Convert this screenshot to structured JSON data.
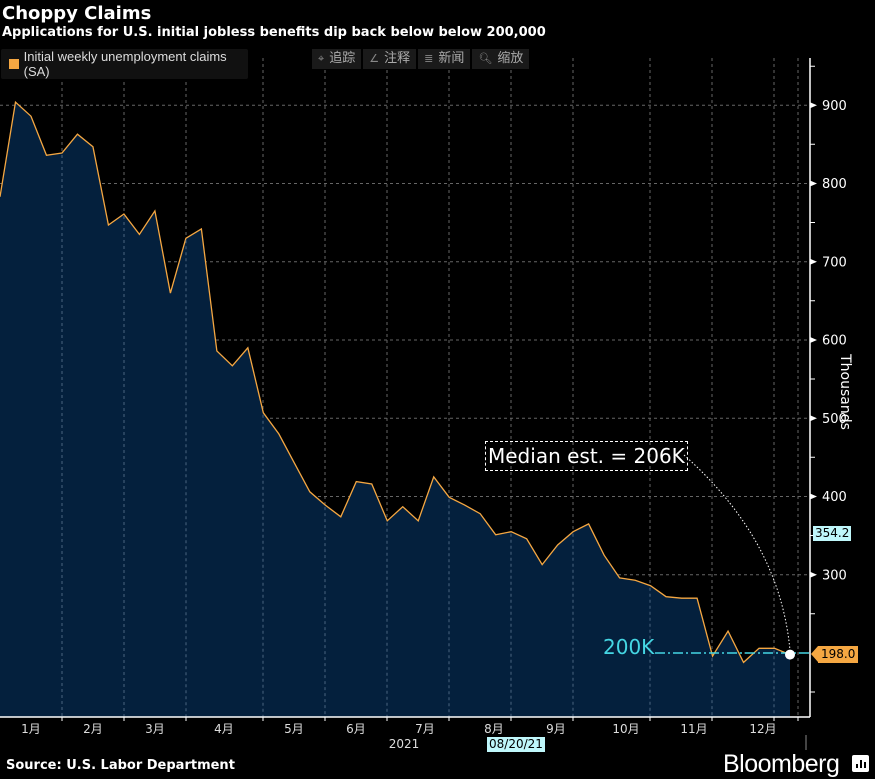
{
  "header": {
    "title": "Choppy Claims",
    "subtitle": "Applications for U.S. initial jobless benefits dip back below below 200,000"
  },
  "toolbar": [
    {
      "icon": "crosshair-icon",
      "glyph": "⌖",
      "label": "追踪"
    },
    {
      "icon": "annotate-icon",
      "glyph": "∠",
      "label": "注释"
    },
    {
      "icon": "news-icon",
      "glyph": "≣",
      "label": "新闻"
    },
    {
      "icon": "zoom-icon",
      "glyph": "🔍︎",
      "label": "缩放"
    }
  ],
  "footer": {
    "source": "Source: U.S. Labor Department",
    "brand": "Bloomberg"
  },
  "colors": {
    "line": "#f5a742",
    "area": "#04203d",
    "reference": "#45d6e3",
    "tag": "#bff7fb"
  },
  "chart_data": {
    "type": "area",
    "title": "Choppy Claims",
    "subtitle": "Applications for U.S. initial jobless benefits dip back below below 200,000",
    "legend": [
      "Initial weekly unemployment claims (SA)"
    ],
    "legend_position": "top-left",
    "ylabel": "Thousands",
    "xlabel": "2021",
    "ylim": [
      110,
      970
    ],
    "yticks": [
      300,
      400,
      500,
      600,
      700,
      800,
      900
    ],
    "y_axis_side": "right",
    "x_month_labels": [
      "1月",
      "2月",
      "3月",
      "4月",
      "5月",
      "6月",
      "7月",
      "8月",
      "9月",
      "10月",
      "11月",
      "12月"
    ],
    "grid": true,
    "series": [
      {
        "name": "Initial weekly unemployment claims (SA)",
        "values": [
          783,
          904,
          886,
          836,
          839,
          863,
          847,
          747,
          761,
          735,
          765,
          660,
          730,
          742,
          586,
          567,
          590,
          507,
          480,
          443,
          406,
          389,
          374,
          419,
          416,
          369,
          387,
          369,
          425,
          399,
          389,
          378,
          351,
          355,
          346,
          313,
          338,
          355,
          365,
          325,
          296,
          293,
          286,
          272,
          270,
          270,
          196,
          228,
          188,
          206,
          206,
          198
        ]
      }
    ],
    "annotations": {
      "median_estimate": "Median est. = 206K",
      "reference_line_label": "200K",
      "reference_line_value": 200,
      "last_value_tag": "198.0",
      "cursor_value_tag": "354.2",
      "cursor_value": 354.2,
      "cursor_date_tag": "08/20/21"
    }
  }
}
